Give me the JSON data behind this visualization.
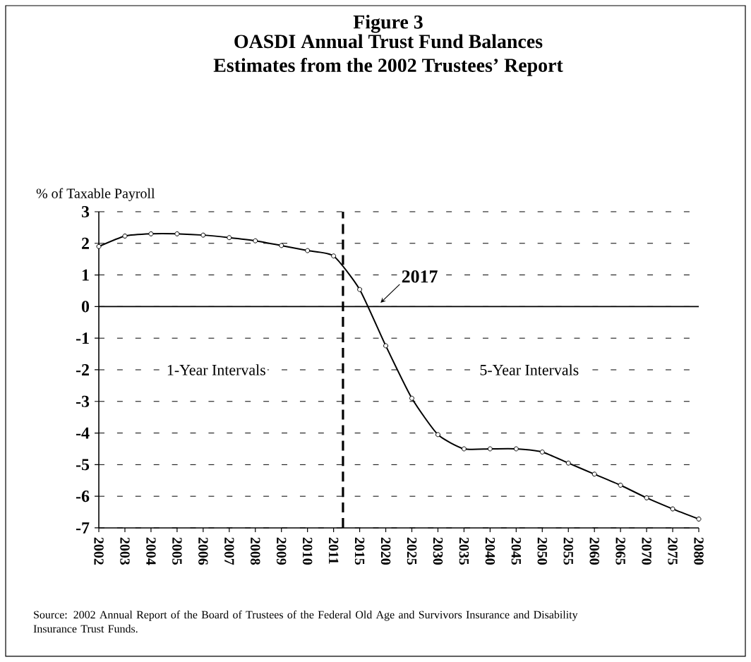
{
  "chart_data": {
    "type": "line",
    "title": "Figure 3",
    "subtitle": "OASDI Annual Trust Fund Balances\nEstimates from the 2002 Trustees’ Report",
    "ylabel": "% of Taxable Payroll",
    "categories": [
      "2002",
      "2003",
      "2004",
      "2005",
      "2006",
      "2007",
      "2008",
      "2009",
      "2010",
      "2011",
      "2015",
      "2020",
      "2025",
      "2030",
      "2035",
      "2040",
      "2045",
      "2050",
      "2055",
      "2060",
      "2065",
      "2070",
      "2075",
      "2080"
    ],
    "series": [
      {
        "color": "#000000",
        "values": [
          1.9,
          2.23,
          2.3,
          2.3,
          2.26,
          2.18,
          2.08,
          1.93,
          1.77,
          1.6,
          0.54,
          -1.24,
          -2.9,
          -4.05,
          -4.5,
          -4.5,
          -4.5,
          -4.6,
          -4.95,
          -5.3,
          -5.65,
          -6.05,
          -6.4,
          -6.72
        ]
      }
    ],
    "ylim": [
      -7,
      3
    ],
    "yticks": [
      -7,
      -6,
      -5,
      -4,
      -3,
      -2,
      -1,
      0,
      1,
      2,
      3
    ],
    "grid": "y",
    "marker": "circle",
    "line_style": "solid",
    "ref_lines": [
      {
        "axis": "y",
        "value": 0
      },
      {
        "axis": "x",
        "value": "2011",
        "line_style": "dashed"
      }
    ],
    "annotations": [
      "1-Year Intervals",
      "5-Year Intervals",
      "2017",
      "Source: 2002 Annual Report of the Board of Trustees of the Federal Old Age and Survivors Insurance and Disability  Insurance Trust Funds."
    ]
  }
}
